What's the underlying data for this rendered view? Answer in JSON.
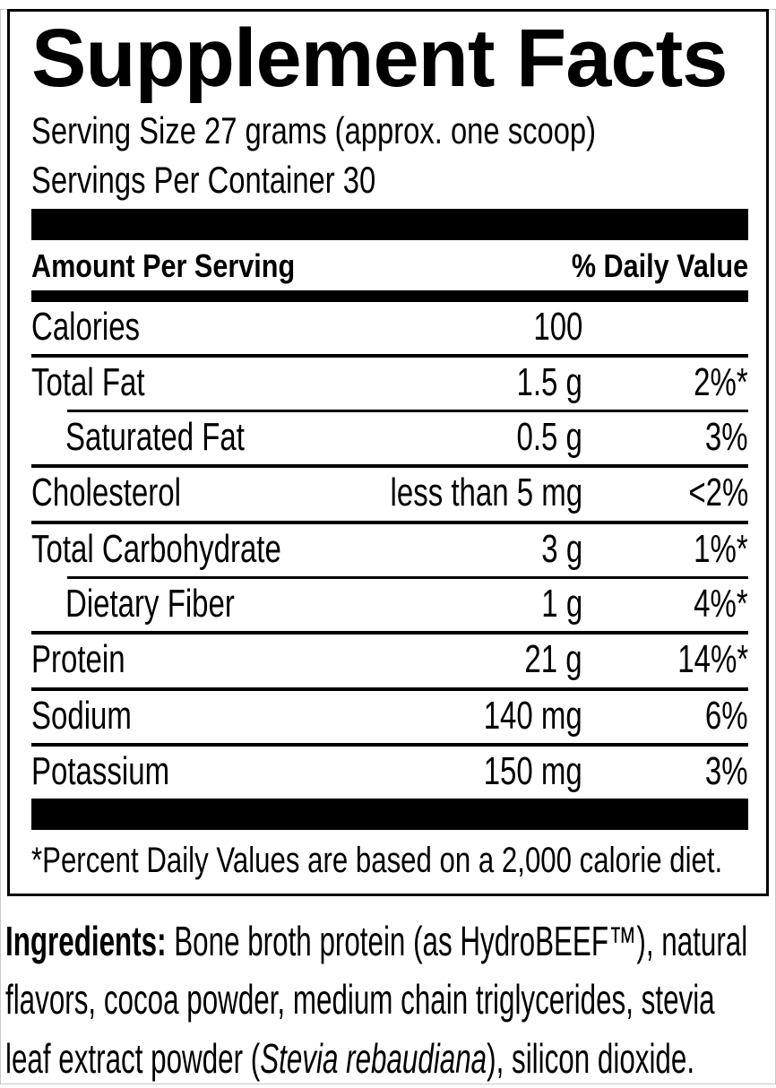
{
  "panel": {
    "title": "Supplement Facts",
    "serving_size": "Serving Size 27 grams (approx. one scoop)",
    "servings_per_container": "Servings Per Container 30",
    "columns": {
      "amount_header": "Amount Per Serving",
      "dv_header": "% Daily Value"
    },
    "rows": [
      {
        "name": "Calories",
        "amount": "100",
        "dv": "",
        "indent": false
      },
      {
        "name": "Total Fat",
        "amount": "1.5 g",
        "dv": "2%*",
        "indent": false
      },
      {
        "name": "Saturated Fat",
        "amount": "0.5 g",
        "dv": "3%",
        "indent": true
      },
      {
        "name": "Cholesterol",
        "amount": "less than 5 mg",
        "dv": "<2%",
        "indent": false
      },
      {
        "name": "Total Carbohydrate",
        "amount": "3 g",
        "dv": "1%*",
        "indent": false
      },
      {
        "name": "Dietary Fiber",
        "amount": "1 g",
        "dv": "4%*",
        "indent": true
      },
      {
        "name": "Protein",
        "amount": "21 g",
        "dv": "14%*",
        "indent": false
      },
      {
        "name": "Sodium",
        "amount": "140 mg",
        "dv": "6%",
        "indent": false
      },
      {
        "name": "Potassium",
        "amount": "150 mg",
        "dv": "3%",
        "indent": false
      }
    ],
    "footnote": "*Percent Daily Values are based on a 2,000 calorie diet."
  },
  "ingredients": {
    "label": "Ingredients:",
    "before_italic": " Bone broth protein (as HydroBEEF™), natural flavors, cocoa powder, medium chain triglycerides, stevia leaf extract powder (",
    "italic": "Stevia rebaudiana",
    "after_italic": "), silicon dioxide."
  },
  "colors": {
    "ink": "#000000",
    "background": "#ffffff"
  }
}
